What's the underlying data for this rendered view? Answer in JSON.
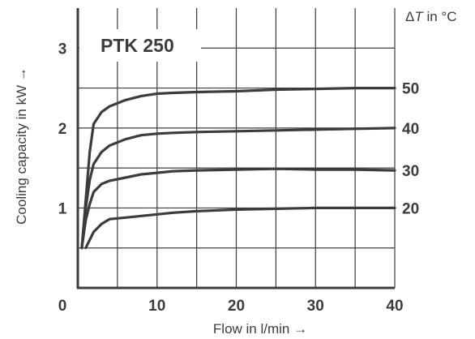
{
  "chart_data": {
    "type": "line",
    "title": "PTK 250",
    "xlabel": "Flow in l/min →",
    "ylabel": "Cooling capacity in kW →",
    "legend_title": "ΔT in °C",
    "xlim": [
      0,
      40
    ],
    "ylim": [
      0,
      3.5
    ],
    "x_ticks": [
      0,
      10,
      20,
      30,
      40
    ],
    "y_ticks": [
      1,
      2,
      3
    ],
    "x_grid": [
      0,
      5,
      10,
      15,
      20,
      25,
      30,
      35,
      40
    ],
    "y_grid": [
      0.5,
      1,
      1.5,
      2,
      2.5,
      3
    ],
    "grid": true,
    "series": [
      {
        "name": "50",
        "points": [
          [
            0.5,
            0.5
          ],
          [
            1,
            1.1
          ],
          [
            1.5,
            1.7
          ],
          [
            2,
            2.05
          ],
          [
            3,
            2.2
          ],
          [
            4,
            2.27
          ],
          [
            6,
            2.35
          ],
          [
            8,
            2.4
          ],
          [
            10,
            2.43
          ],
          [
            12,
            2.44
          ],
          [
            15,
            2.45
          ],
          [
            20,
            2.46
          ],
          [
            25,
            2.48
          ],
          [
            30,
            2.49
          ],
          [
            35,
            2.5
          ],
          [
            40,
            2.5
          ]
        ]
      },
      {
        "name": "40",
        "points": [
          [
            0.5,
            0.5
          ],
          [
            1,
            1.0
          ],
          [
            1.5,
            1.35
          ],
          [
            2,
            1.55
          ],
          [
            3,
            1.7
          ],
          [
            4,
            1.78
          ],
          [
            6,
            1.86
          ],
          [
            8,
            1.91
          ],
          [
            10,
            1.93
          ],
          [
            12,
            1.94
          ],
          [
            15,
            1.95
          ],
          [
            20,
            1.96
          ],
          [
            25,
            1.97
          ],
          [
            30,
            1.98
          ],
          [
            35,
            1.99
          ],
          [
            40,
            2.0
          ]
        ]
      },
      {
        "name": "30",
        "points": [
          [
            0.5,
            0.5
          ],
          [
            1,
            0.85
          ],
          [
            1.5,
            1.05
          ],
          [
            2,
            1.2
          ],
          [
            3,
            1.3
          ],
          [
            4,
            1.34
          ],
          [
            6,
            1.38
          ],
          [
            8,
            1.42
          ],
          [
            10,
            1.44
          ],
          [
            12,
            1.46
          ],
          [
            15,
            1.47
          ],
          [
            20,
            1.48
          ],
          [
            25,
            1.49
          ],
          [
            30,
            1.48
          ],
          [
            35,
            1.48
          ],
          [
            40,
            1.47
          ]
        ]
      },
      {
        "name": "20",
        "points": [
          [
            1,
            0.5
          ],
          [
            2,
            0.7
          ],
          [
            3,
            0.8
          ],
          [
            4,
            0.86
          ],
          [
            6,
            0.88
          ],
          [
            8,
            0.9
          ],
          [
            10,
            0.92
          ],
          [
            12,
            0.94
          ],
          [
            15,
            0.96
          ],
          [
            20,
            0.98
          ],
          [
            25,
            0.99
          ],
          [
            30,
            1.0
          ],
          [
            35,
            1.0
          ],
          [
            40,
            1.0
          ]
        ]
      }
    ]
  }
}
